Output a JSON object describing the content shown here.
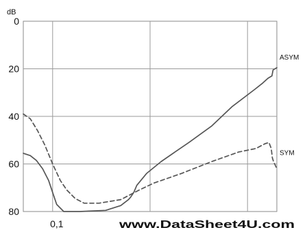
{
  "chart_data": {
    "type": "line",
    "ylabel": "dB",
    "y_reversed": true,
    "ylim": [
      0,
      80
    ],
    "y_ticks": [
      0,
      20,
      40,
      60,
      80
    ],
    "x_scale": "log",
    "x_tick_labels": [
      "0,1"
    ],
    "grid": true,
    "series": [
      {
        "name": "ASYM",
        "color": "#555555",
        "style": "solid",
        "x": [
          0.05,
          0.059,
          0.068,
          0.079,
          0.091,
          0.1,
          0.11,
          0.13,
          0.19,
          0.35,
          0.5,
          0.6,
          0.63,
          0.68,
          0.73,
          0.92,
          1.3,
          1.8,
          2.5,
          4.3,
          6.9,
          12,
          14.3,
          16.2,
          17.8,
          18.3,
          20
        ],
        "values": [
          55.5,
          56.5,
          58.5,
          62,
          67,
          72,
          77,
          80,
          80,
          79.5,
          77.5,
          75,
          74,
          72,
          69,
          64,
          59,
          55,
          51,
          44,
          36,
          28.5,
          26,
          24,
          23,
          20.5,
          19.5
        ]
      },
      {
        "name": "SYM",
        "color": "#555555",
        "style": "dashed",
        "x": [
          0.05,
          0.059,
          0.07,
          0.083,
          0.1,
          0.12,
          0.14,
          0.17,
          0.21,
          0.3,
          0.5,
          0.77,
          1.1,
          2.1,
          4.3,
          8.1,
          12.2,
          15.1,
          16.6,
          17.5,
          18,
          18.5,
          20
        ],
        "values": [
          39,
          41,
          46,
          52,
          60,
          67,
          71,
          74.5,
          76.5,
          76.5,
          75,
          71,
          68,
          64,
          59,
          55,
          53.5,
          51.5,
          51,
          53.5,
          57.5,
          59,
          62
        ]
      }
    ]
  },
  "watermark": "www.DataSheet4U.com"
}
